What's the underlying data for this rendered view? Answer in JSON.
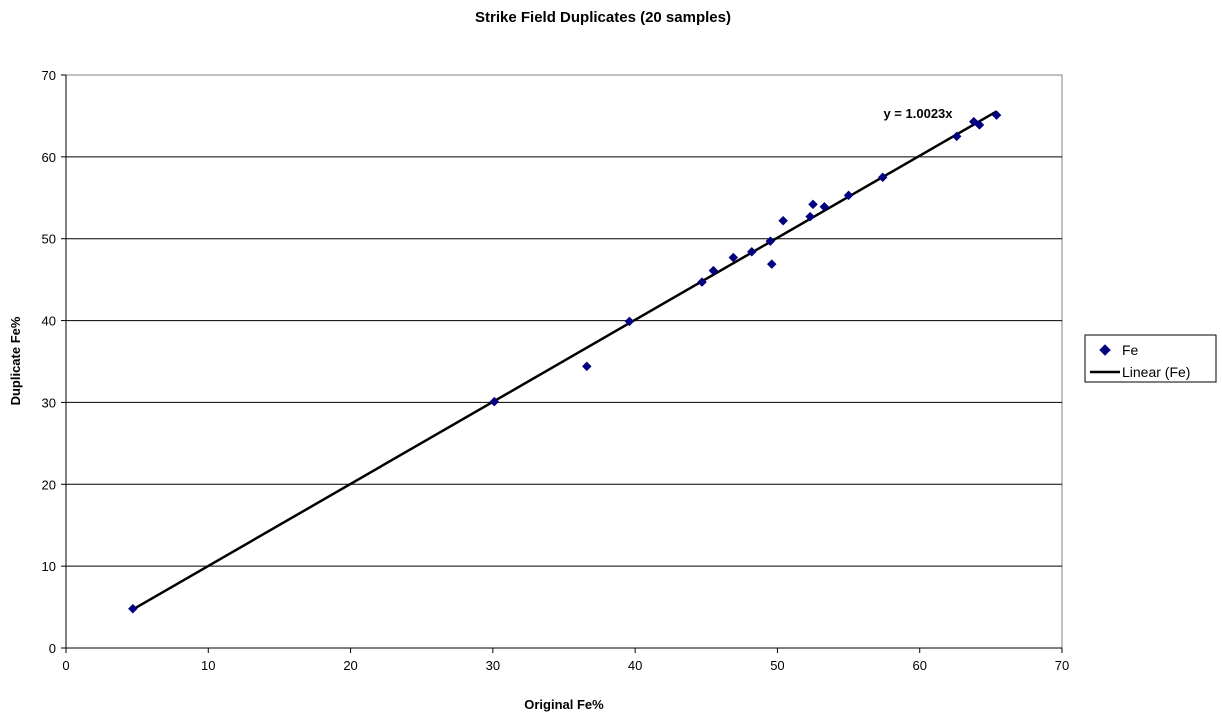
{
  "chart_data": {
    "type": "scatter",
    "title": "Strike Field Duplicates (20 samples)",
    "xlabel": "Original Fe%",
    "ylabel": "Duplicate Fe%",
    "xlim": [
      0,
      70
    ],
    "ylim": [
      0,
      70
    ],
    "xticks": [
      0,
      10,
      20,
      30,
      40,
      50,
      60,
      70
    ],
    "yticks": [
      0,
      10,
      20,
      30,
      40,
      50,
      60,
      70
    ],
    "grid": "horizontal",
    "legend_position": "right",
    "series": [
      {
        "name": "Fe",
        "color": "#000080",
        "marker": "diamond",
        "points": [
          {
            "x": 4.7,
            "y": 4.8
          },
          {
            "x": 30.1,
            "y": 30.1
          },
          {
            "x": 36.6,
            "y": 34.4
          },
          {
            "x": 39.6,
            "y": 39.9
          },
          {
            "x": 44.7,
            "y": 44.7
          },
          {
            "x": 45.5,
            "y": 46.1
          },
          {
            "x": 46.9,
            "y": 47.7
          },
          {
            "x": 48.2,
            "y": 48.4
          },
          {
            "x": 49.5,
            "y": 49.7
          },
          {
            "x": 49.6,
            "y": 46.9
          },
          {
            "x": 50.4,
            "y": 52.2
          },
          {
            "x": 52.3,
            "y": 52.7
          },
          {
            "x": 52.5,
            "y": 54.2
          },
          {
            "x": 53.3,
            "y": 53.9
          },
          {
            "x": 55.0,
            "y": 55.3
          },
          {
            "x": 57.4,
            "y": 57.5
          },
          {
            "x": 62.6,
            "y": 62.5
          },
          {
            "x": 63.8,
            "y": 64.3
          },
          {
            "x": 64.2,
            "y": 63.9
          },
          {
            "x": 65.4,
            "y": 65.1
          }
        ]
      },
      {
        "name": "Linear (Fe)",
        "color": "#000000",
        "type": "trendline",
        "slope": 1.0023,
        "intercept": 0,
        "x_range": [
          4.7,
          65.4
        ]
      }
    ],
    "annotations": [
      {
        "text": "y = 1.0023x"
      }
    ]
  }
}
